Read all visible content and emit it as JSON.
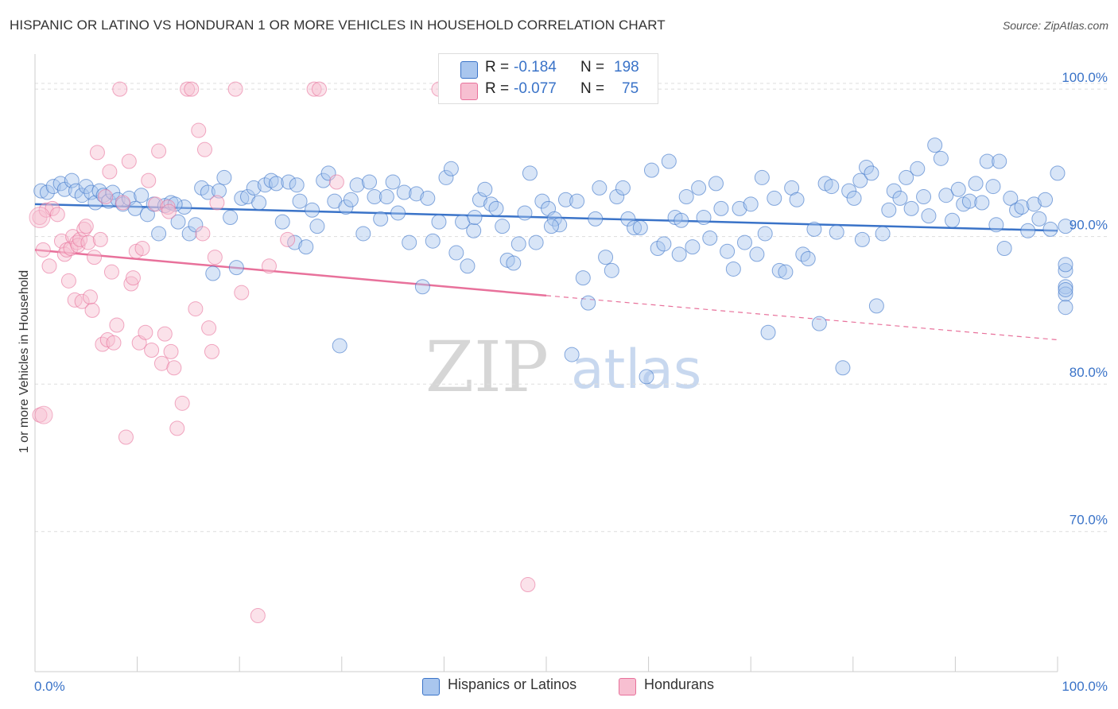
{
  "header": {
    "title": "HISPANIC OR LATINO VS HONDURAN 1 OR MORE VEHICLES IN HOUSEHOLD CORRELATION CHART",
    "source": "Source: ZipAtlas.com"
  },
  "colors": {
    "blue": "#3a73c8",
    "blue_fill": "#a9c6ee",
    "pink": "#e8719b",
    "pink_fill": "#f7bfd1",
    "grid": "#dddddd"
  },
  "legend": {
    "rows": [
      {
        "r_label": "R =",
        "r_value": "-0.184",
        "n_label": "N =",
        "n_value": "198"
      },
      {
        "r_label": "R =",
        "r_value": "-0.077",
        "n_label": "N =",
        "n_value": "75"
      }
    ]
  },
  "bottom_legend": {
    "items": [
      "Hispanics or Latinos",
      "Hondurans"
    ]
  },
  "watermark": {
    "zip": "ZIP",
    "atlas": "atlas"
  },
  "chart_data": {
    "type": "scatter",
    "ylabel": "1 or more Vehicles in Household",
    "x_ticks": [
      "0.0%",
      "100.0%"
    ],
    "y_ticks": [
      "100.0%",
      "90.0%",
      "80.0%",
      "70.0%"
    ],
    "y_tick_values": [
      100,
      90,
      80,
      70
    ],
    "xlim": [
      0,
      100
    ],
    "ylim": [
      60.5,
      102
    ],
    "grid": true,
    "legend_position": "top-center",
    "series": [
      {
        "name": "Hispanics or Latinos",
        "trend": {
          "x": [
            0,
            100
          ],
          "y": [
            92.2,
            90.4
          ],
          "dashed_from": null
        },
        "points": [
          [
            0.6,
            93.1
          ],
          [
            1.2,
            93.0
          ],
          [
            1.8,
            93.4
          ],
          [
            2.5,
            93.6
          ],
          [
            2.9,
            93.2
          ],
          [
            3.6,
            93.8
          ],
          [
            4.0,
            93.1
          ],
          [
            4.6,
            92.8
          ],
          [
            5.0,
            93.4
          ],
          [
            5.5,
            93.0
          ],
          [
            5.9,
            92.3
          ],
          [
            6.3,
            93.1
          ],
          [
            6.7,
            92.8
          ],
          [
            7.2,
            92.4
          ],
          [
            7.6,
            93.0
          ],
          [
            8.1,
            92.5
          ],
          [
            8.6,
            92.2
          ],
          [
            9.2,
            92.6
          ],
          [
            9.8,
            91.9
          ],
          [
            10.4,
            92.8
          ],
          [
            11.0,
            91.5
          ],
          [
            11.6,
            92.2
          ],
          [
            12.1,
            90.2
          ],
          [
            12.7,
            92.1
          ],
          [
            13.3,
            92.3
          ],
          [
            14.0,
            91.0
          ],
          [
            14.6,
            92.0
          ],
          [
            15.1,
            90.2
          ],
          [
            15.7,
            90.8
          ],
          [
            16.3,
            93.3
          ],
          [
            16.9,
            93.0
          ],
          [
            17.4,
            87.5
          ],
          [
            18.0,
            93.1
          ],
          [
            18.5,
            94.0
          ],
          [
            19.1,
            91.3
          ],
          [
            19.7,
            87.9
          ],
          [
            20.2,
            92.6
          ],
          [
            20.8,
            92.7
          ],
          [
            21.4,
            93.3
          ],
          [
            21.9,
            92.3
          ],
          [
            22.5,
            93.5
          ],
          [
            23.1,
            93.8
          ],
          [
            23.6,
            93.6
          ],
          [
            24.2,
            91.0
          ],
          [
            24.8,
            93.7
          ],
          [
            25.4,
            89.6
          ],
          [
            25.9,
            92.4
          ],
          [
            26.5,
            89.3
          ],
          [
            27.1,
            91.8
          ],
          [
            27.6,
            90.7
          ],
          [
            28.2,
            93.8
          ],
          [
            28.7,
            94.3
          ],
          [
            29.3,
            92.4
          ],
          [
            29.8,
            82.6
          ],
          [
            30.4,
            92.0
          ],
          [
            30.9,
            92.5
          ],
          [
            31.5,
            93.5
          ],
          [
            32.1,
            90.2
          ],
          [
            32.7,
            93.7
          ],
          [
            33.2,
            92.7
          ],
          [
            33.8,
            91.2
          ],
          [
            34.4,
            92.7
          ],
          [
            35.0,
            93.7
          ],
          [
            35.5,
            91.6
          ],
          [
            36.1,
            93.0
          ],
          [
            36.6,
            89.6
          ],
          [
            37.3,
            92.9
          ],
          [
            37.9,
            86.6
          ],
          [
            38.4,
            92.6
          ],
          [
            38.9,
            89.7
          ],
          [
            39.5,
            91.0
          ],
          [
            40.2,
            94.0
          ],
          [
            40.7,
            94.6
          ],
          [
            41.2,
            88.9
          ],
          [
            41.8,
            91.0
          ],
          [
            42.3,
            88.0
          ],
          [
            42.9,
            90.4
          ],
          [
            43.5,
            92.5
          ],
          [
            44.0,
            93.2
          ],
          [
            44.6,
            92.2
          ],
          [
            45.1,
            91.9
          ],
          [
            45.7,
            90.7
          ],
          [
            46.2,
            88.4
          ],
          [
            46.8,
            88.2
          ],
          [
            47.3,
            89.5
          ],
          [
            47.9,
            91.6
          ],
          [
            48.4,
            94.3
          ],
          [
            49.0,
            89.6
          ],
          [
            49.6,
            92.4
          ],
          [
            50.2,
            91.9
          ],
          [
            50.8,
            91.2
          ],
          [
            51.3,
            90.8
          ],
          [
            51.9,
            92.5
          ],
          [
            52.5,
            82.0
          ],
          [
            53.0,
            92.4
          ],
          [
            53.6,
            87.2
          ],
          [
            54.1,
            85.5
          ],
          [
            54.8,
            91.2
          ],
          [
            55.2,
            93.3
          ],
          [
            55.8,
            88.6
          ],
          [
            56.4,
            87.7
          ],
          [
            56.9,
            92.7
          ],
          [
            57.5,
            93.3
          ],
          [
            58.0,
            91.2
          ],
          [
            58.6,
            90.6
          ],
          [
            59.2,
            90.6
          ],
          [
            59.8,
            80.5
          ],
          [
            60.3,
            94.5
          ],
          [
            60.9,
            89.2
          ],
          [
            61.5,
            89.5
          ],
          [
            62.0,
            95.1
          ],
          [
            62.6,
            91.3
          ],
          [
            63.2,
            91.1
          ],
          [
            63.7,
            92.7
          ],
          [
            64.3,
            89.3
          ],
          [
            64.9,
            93.3
          ],
          [
            65.4,
            91.3
          ],
          [
            66.0,
            89.9
          ],
          [
            66.6,
            93.6
          ],
          [
            67.1,
            91.9
          ],
          [
            67.7,
            89.0
          ],
          [
            68.3,
            87.8
          ],
          [
            68.9,
            91.9
          ],
          [
            69.4,
            89.6
          ],
          [
            70.0,
            92.2
          ],
          [
            70.6,
            88.8
          ],
          [
            71.1,
            94.0
          ],
          [
            71.7,
            83.5
          ],
          [
            72.3,
            92.6
          ],
          [
            72.8,
            87.7
          ],
          [
            73.4,
            87.6
          ],
          [
            74.0,
            93.3
          ],
          [
            74.5,
            92.5
          ],
          [
            75.1,
            88.8
          ],
          [
            75.6,
            88.5
          ],
          [
            76.2,
            90.5
          ],
          [
            76.7,
            84.1
          ],
          [
            77.3,
            93.6
          ],
          [
            77.9,
            93.4
          ],
          [
            78.4,
            90.3
          ],
          [
            79.0,
            81.1
          ],
          [
            79.6,
            93.1
          ],
          [
            80.1,
            92.6
          ],
          [
            80.7,
            93.8
          ],
          [
            81.3,
            94.7
          ],
          [
            81.8,
            94.3
          ],
          [
            82.3,
            85.3
          ],
          [
            82.9,
            90.2
          ],
          [
            83.5,
            91.8
          ],
          [
            84.0,
            93.1
          ],
          [
            84.6,
            92.6
          ],
          [
            85.2,
            94.0
          ],
          [
            85.7,
            91.9
          ],
          [
            86.3,
            94.6
          ],
          [
            86.9,
            92.7
          ],
          [
            87.4,
            91.4
          ],
          [
            88.0,
            96.2
          ],
          [
            88.6,
            95.3
          ],
          [
            89.1,
            92.8
          ],
          [
            89.7,
            91.1
          ],
          [
            90.3,
            93.2
          ],
          [
            90.8,
            92.2
          ],
          [
            91.4,
            92.4
          ],
          [
            92.0,
            93.6
          ],
          [
            92.6,
            92.3
          ],
          [
            93.1,
            95.1
          ],
          [
            93.7,
            93.4
          ],
          [
            94.3,
            95.1
          ],
          [
            94.8,
            89.2
          ],
          [
            95.4,
            92.6
          ],
          [
            96.0,
            91.8
          ],
          [
            96.5,
            92.0
          ],
          [
            97.1,
            90.4
          ],
          [
            97.7,
            92.2
          ],
          [
            98.2,
            91.2
          ],
          [
            98.8,
            92.5
          ],
          [
            99.3,
            90.5
          ],
          [
            100.0,
            94.3
          ],
          [
            100.8,
            90.7
          ],
          [
            101.5,
            87.7
          ],
          [
            101.9,
            86.6
          ],
          [
            102.3,
            86.1
          ],
          [
            102.6,
            86.4
          ],
          [
            103.0,
            88.1
          ],
          [
            101.4,
            85.2
          ],
          [
            94.0,
            90.8
          ],
          [
            80.9,
            89.8
          ],
          [
            71.4,
            90.2
          ],
          [
            63.0,
            88.8
          ],
          [
            50.5,
            90.7
          ],
          [
            43.0,
            91.3
          ],
          [
            25.6,
            93.5
          ],
          [
            13.7,
            92.2
          ]
        ]
      },
      {
        "name": "Hondurans",
        "trend": {
          "x": [
            0,
            50,
            100
          ],
          "y": [
            89.1,
            86.0,
            83.0
          ],
          "dashed_from": 50
        },
        "points": [
          [
            0.3,
            91.3
          ],
          [
            0.4,
            77.9
          ],
          [
            0.8,
            89.1
          ],
          [
            1.1,
            91.8
          ],
          [
            1.4,
            88.0
          ],
          [
            1.7,
            91.9
          ],
          [
            2.2,
            91.5
          ],
          [
            2.6,
            89.7
          ],
          [
            2.9,
            88.8
          ],
          [
            3.1,
            89.1
          ],
          [
            3.3,
            87.0
          ],
          [
            3.5,
            89.2
          ],
          [
            3.7,
            90.0
          ],
          [
            3.9,
            85.7
          ],
          [
            4.1,
            89.6
          ],
          [
            4.2,
            89.4
          ],
          [
            4.4,
            89.8
          ],
          [
            4.6,
            85.6
          ],
          [
            4.8,
            90.5
          ],
          [
            5.0,
            90.7
          ],
          [
            5.2,
            89.6
          ],
          [
            5.4,
            85.9
          ],
          [
            5.6,
            85.0
          ],
          [
            5.8,
            88.6
          ],
          [
            6.1,
            95.7
          ],
          [
            6.4,
            89.8
          ],
          [
            6.6,
            82.7
          ],
          [
            6.9,
            92.7
          ],
          [
            7.1,
            83.0
          ],
          [
            7.3,
            94.4
          ],
          [
            7.5,
            87.6
          ],
          [
            7.7,
            82.8
          ],
          [
            8.0,
            84.0
          ],
          [
            8.3,
            100.0
          ],
          [
            8.6,
            92.3
          ],
          [
            8.9,
            76.4
          ],
          [
            9.2,
            95.1
          ],
          [
            9.4,
            86.8
          ],
          [
            9.6,
            87.2
          ],
          [
            9.9,
            89.0
          ],
          [
            10.2,
            82.8
          ],
          [
            10.5,
            89.2
          ],
          [
            10.8,
            83.5
          ],
          [
            11.1,
            93.8
          ],
          [
            11.4,
            82.3
          ],
          [
            11.8,
            92.2
          ],
          [
            12.1,
            95.8
          ],
          [
            12.4,
            81.4
          ],
          [
            12.7,
            83.4
          ],
          [
            13.0,
            92.0
          ],
          [
            13.3,
            82.2
          ],
          [
            13.6,
            81.1
          ],
          [
            13.9,
            77.0
          ],
          [
            14.4,
            78.7
          ],
          [
            14.9,
            100.0
          ],
          [
            15.3,
            100.0
          ],
          [
            15.7,
            85.1
          ],
          [
            16.0,
            97.2
          ],
          [
            16.4,
            90.2
          ],
          [
            16.6,
            95.9
          ],
          [
            17.0,
            83.8
          ],
          [
            17.3,
            82.2
          ],
          [
            17.6,
            88.6
          ],
          [
            17.8,
            92.3
          ],
          [
            19.6,
            100.0
          ],
          [
            20.2,
            86.2
          ],
          [
            21.8,
            64.3
          ],
          [
            22.9,
            88.0
          ],
          [
            24.7,
            89.8
          ],
          [
            27.3,
            100.0
          ],
          [
            27.8,
            100.0
          ],
          [
            29.5,
            93.7
          ],
          [
            39.5,
            100.0
          ],
          [
            48.2,
            66.4
          ],
          [
            13.1,
            91.7
          ]
        ]
      }
    ]
  }
}
